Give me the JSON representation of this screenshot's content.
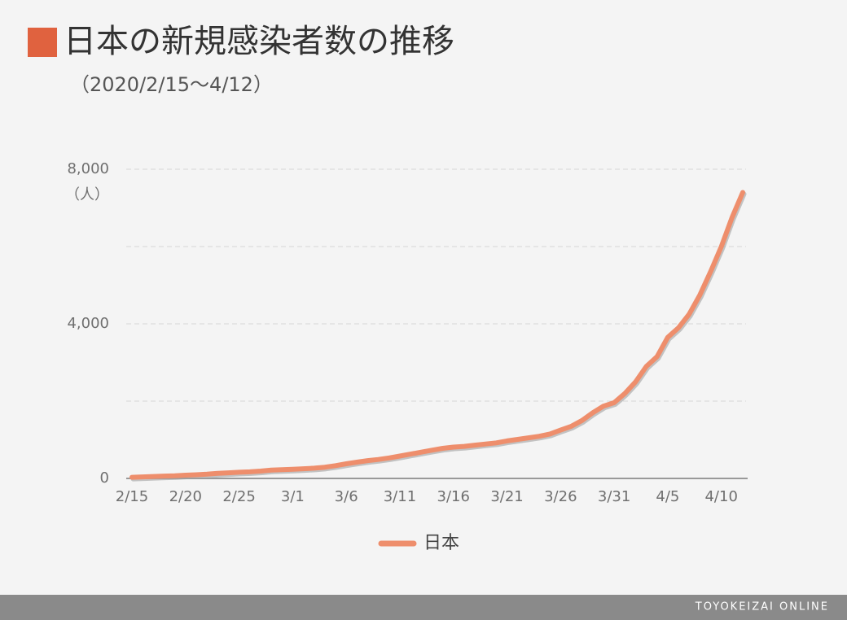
{
  "chart_data": {
    "type": "line",
    "title": "日本の新規感染者数の推移",
    "subtitle": "（2020/2/15〜4/12）",
    "y_unit": "（人）",
    "source": "TOYOKEIZAI ONLINE",
    "categories": [
      "2/15",
      null,
      null,
      null,
      null,
      "2/20",
      null,
      null,
      null,
      null,
      "2/25",
      null,
      null,
      null,
      null,
      "3/1",
      null,
      null,
      null,
      null,
      "3/6",
      null,
      null,
      null,
      null,
      "3/11",
      null,
      null,
      null,
      null,
      "3/16",
      null,
      null,
      null,
      null,
      "3/21",
      null,
      null,
      null,
      null,
      "3/26",
      null,
      null,
      null,
      null,
      "3/31",
      null,
      null,
      null,
      null,
      "4/5",
      null,
      null,
      null,
      null,
      "4/10",
      null,
      null
    ],
    "series": [
      {
        "name": "日本",
        "color": "#ee8e6c",
        "values": [
          30,
          40,
          50,
          60,
          70,
          84,
          95,
          110,
          130,
          145,
          160,
          170,
          190,
          215,
          225,
          235,
          250,
          265,
          290,
          330,
          380,
          420,
          460,
          490,
          530,
          580,
          630,
          680,
          730,
          780,
          810,
          830,
          860,
          890,
          920,
          970,
          1010,
          1050,
          1090,
          1150,
          1250,
          1350,
          1500,
          1700,
          1870,
          1960,
          2200,
          2500,
          2900,
          3150,
          3650,
          3900,
          4250,
          4750,
          5350,
          6000,
          6750,
          7400
        ]
      }
    ],
    "ylim": [
      0,
      8000
    ],
    "yticks": [
      0,
      {
        "value": 4000,
        "label": "4,000"
      },
      {
        "value": 8000,
        "label": "8,000"
      }
    ],
    "minor_yticks": [
      2000,
      6000
    ],
    "grid": true,
    "legend": "bottom"
  }
}
